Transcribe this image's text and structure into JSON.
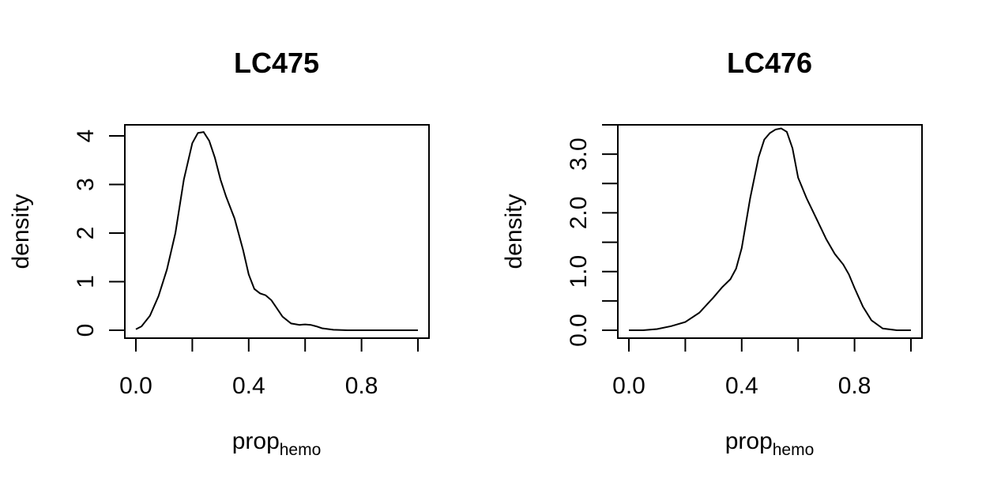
{
  "chart_data": [
    {
      "type": "line",
      "title": "LC475",
      "xlabel": "prop",
      "xlabel_subscript": "hemo",
      "ylabel": "density",
      "xlim": [
        0,
        1
      ],
      "ylim": [
        0,
        4.1
      ],
      "xticks": [
        0,
        0.2,
        0.4,
        0.6,
        0.8,
        1.0
      ],
      "xtick_labels": [
        "0.0",
        "",
        "0.4",
        "",
        "0.8",
        ""
      ],
      "yticks": [
        0,
        1,
        2,
        3,
        4
      ],
      "ytick_labels": [
        "0",
        "1",
        "2",
        "3",
        "4"
      ],
      "grid": false,
      "series": [
        {
          "x": [
            0.0,
            0.02,
            0.05,
            0.08,
            0.11,
            0.14,
            0.17,
            0.2,
            0.22,
            0.24,
            0.26,
            0.28,
            0.3,
            0.32,
            0.35,
            0.38,
            0.4,
            0.42,
            0.44,
            0.46,
            0.48,
            0.5,
            0.52,
            0.55,
            0.58,
            0.6,
            0.62,
            0.64,
            0.66,
            0.7,
            0.75,
            0.8,
            0.9,
            1.0
          ],
          "y": [
            0.02,
            0.08,
            0.3,
            0.7,
            1.25,
            2.0,
            3.1,
            3.85,
            4.06,
            4.08,
            3.9,
            3.55,
            3.1,
            2.75,
            2.3,
            1.65,
            1.15,
            0.85,
            0.76,
            0.72,
            0.62,
            0.45,
            0.28,
            0.14,
            0.11,
            0.12,
            0.11,
            0.08,
            0.04,
            0.01,
            0.0,
            0.0,
            0.0,
            0.0
          ]
        }
      ]
    },
    {
      "type": "line",
      "title": "LC476",
      "xlabel": "prop",
      "xlabel_subscript": "hemo",
      "ylabel": "density",
      "xlim": [
        0,
        1
      ],
      "ylim": [
        0,
        3.4
      ],
      "xticks": [
        0,
        0.2,
        0.4,
        0.6,
        0.8,
        1.0
      ],
      "xtick_labels": [
        "0.0",
        "",
        "0.4",
        "",
        "0.8",
        ""
      ],
      "yticks": [
        0,
        0.5,
        1.0,
        1.5,
        2.0,
        2.5,
        3.0,
        3.5
      ],
      "ytick_labels": [
        "0.0",
        "",
        "1.0",
        "",
        "2.0",
        "",
        "3.0",
        ""
      ],
      "grid": false,
      "series": [
        {
          "x": [
            0.0,
            0.05,
            0.1,
            0.15,
            0.2,
            0.25,
            0.3,
            0.33,
            0.36,
            0.38,
            0.4,
            0.43,
            0.46,
            0.48,
            0.5,
            0.52,
            0.54,
            0.56,
            0.58,
            0.6,
            0.63,
            0.66,
            0.7,
            0.73,
            0.76,
            0.78,
            0.8,
            0.83,
            0.86,
            0.9,
            0.95,
            1.0
          ],
          "y": [
            0.0,
            0.0,
            0.02,
            0.07,
            0.14,
            0.3,
            0.56,
            0.73,
            0.87,
            1.05,
            1.4,
            2.25,
            2.95,
            3.25,
            3.36,
            3.42,
            3.44,
            3.38,
            3.1,
            2.6,
            2.25,
            1.95,
            1.55,
            1.3,
            1.12,
            0.95,
            0.72,
            0.4,
            0.17,
            0.03,
            0.0,
            0.0
          ]
        }
      ]
    }
  ]
}
